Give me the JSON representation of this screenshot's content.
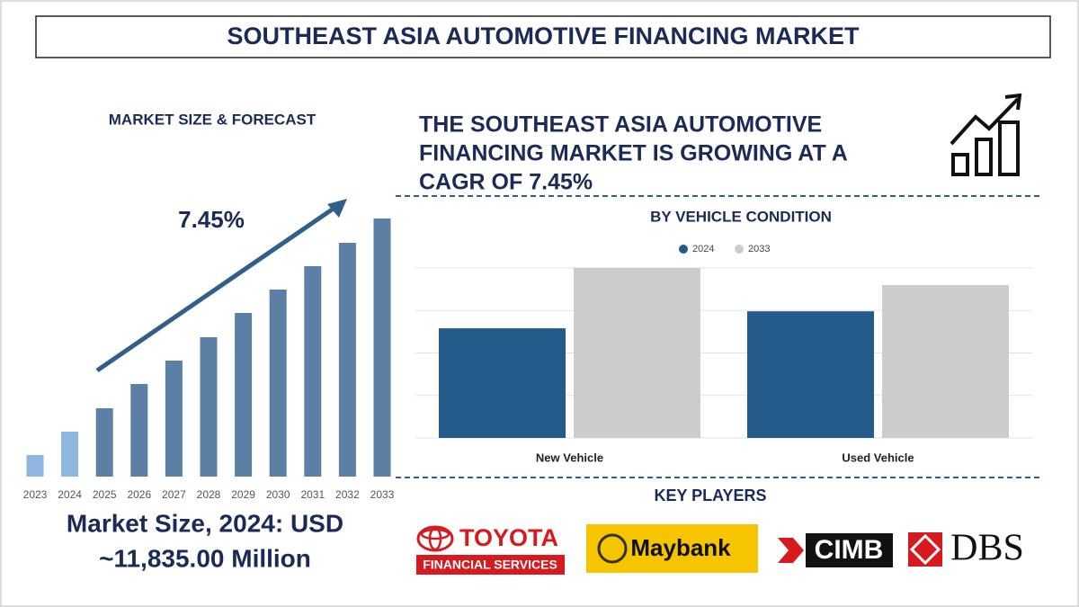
{
  "header": {
    "title": "SOUTHEAST ASIA AUTOMOTIVE FINANCING MARKET"
  },
  "headline": [
    "THE SOUTHEAST ASIA AUTOMOTIVE",
    "FINANCING MARKET IS GROWING AT A",
    "CAGR OF 7.45%"
  ],
  "market_size": [
    "Market Size, 2024: USD",
    "~11,835.00 Million"
  ],
  "chart_data": [
    {
      "type": "bar",
      "title": "MARKET SIZE & FORECAST",
      "annotation": "7.45%",
      "categories": [
        "2023",
        "2024",
        "2025",
        "2026",
        "2027",
        "2028",
        "2029",
        "2030",
        "2031",
        "2032",
        "2033"
      ],
      "values": [
        24,
        50,
        76,
        103,
        129,
        155,
        182,
        208,
        234,
        260,
        287
      ],
      "colors": [
        "#8fb6e0",
        "#8fb6e0",
        "#5c7fa5",
        "#5c7fa5",
        "#5c7fa5",
        "#5c7fa5",
        "#5c7fa5",
        "#5c7fa5",
        "#5c7fa5",
        "#5c7fa5",
        "#5c7fa5"
      ]
    },
    {
      "type": "grouped-bar",
      "title": "BY VEHICLE CONDITION",
      "categories": [
        "New Vehicle",
        "Used Vehicle"
      ],
      "series": [
        {
          "name": "2024",
          "color": "#245b8b",
          "values": [
            129,
            149
          ]
        },
        {
          "name": "2033",
          "color": "#cccccc",
          "values": [
            200,
            180
          ]
        }
      ],
      "ylim": [
        0,
        200
      ],
      "yticks": [
        0,
        50,
        100,
        150,
        200
      ],
      "grid": true
    }
  ],
  "key_players": {
    "title": "KEY PLAYERS",
    "logos": [
      "TOYOTA",
      "FINANCIAL SERVICES",
      "Maybank",
      "CIMB",
      "DBS"
    ]
  }
}
